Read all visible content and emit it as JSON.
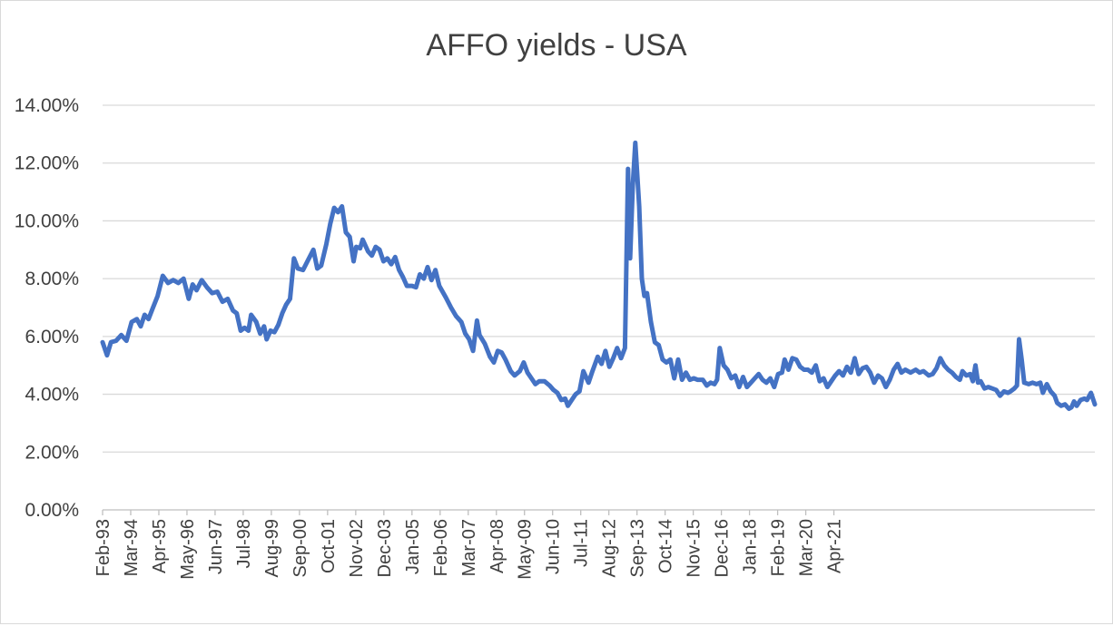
{
  "chart_data": {
    "type": "line",
    "title": "AFFO yields - USA",
    "xlabel": "",
    "ylabel": "",
    "ylim": [
      0,
      14
    ],
    "y_tick_labels": [
      "0.00%",
      "2.00%",
      "4.00%",
      "6.00%",
      "8.00%",
      "10.00%",
      "12.00%",
      "14.00%"
    ],
    "x_tick_labels": [
      "Feb-93",
      "Mar-94",
      "Apr-95",
      "May-96",
      "Jun-97",
      "Jul-98",
      "Aug-99",
      "Sep-00",
      "Oct-01",
      "Nov-02",
      "Dec-03",
      "Jan-05",
      "Feb-06",
      "Mar-07",
      "Apr-08",
      "May-09",
      "Jun-10",
      "Jul-11",
      "Aug-12",
      "Sep-13",
      "Oct-14",
      "Nov-15",
      "Dec-16",
      "Jan-18",
      "Feb-19",
      "Mar-20",
      "Apr-21"
    ],
    "grid": true,
    "legend": "none",
    "line_color": "#4472c4",
    "series": [
      {
        "values": [
          [
            1993.08,
            5.8
          ],
          [
            1993.25,
            5.35
          ],
          [
            1993.4,
            5.8
          ],
          [
            1993.6,
            5.85
          ],
          [
            1993.8,
            6.05
          ],
          [
            1994.0,
            5.85
          ],
          [
            1994.2,
            6.5
          ],
          [
            1994.4,
            6.6
          ],
          [
            1994.55,
            6.35
          ],
          [
            1994.7,
            6.75
          ],
          [
            1994.85,
            6.6
          ],
          [
            1995.0,
            6.95
          ],
          [
            1995.2,
            7.4
          ],
          [
            1995.4,
            8.1
          ],
          [
            1995.6,
            7.85
          ],
          [
            1995.8,
            7.95
          ],
          [
            1996.0,
            7.85
          ],
          [
            1996.2,
            8.0
          ],
          [
            1996.4,
            7.3
          ],
          [
            1996.55,
            7.8
          ],
          [
            1996.7,
            7.6
          ],
          [
            1996.9,
            7.95
          ],
          [
            1997.1,
            7.7
          ],
          [
            1997.3,
            7.5
          ],
          [
            1997.5,
            7.55
          ],
          [
            1997.7,
            7.2
          ],
          [
            1997.9,
            7.3
          ],
          [
            1998.1,
            6.9
          ],
          [
            1998.25,
            6.8
          ],
          [
            1998.4,
            6.2
          ],
          [
            1998.55,
            6.3
          ],
          [
            1998.7,
            6.2
          ],
          [
            1998.8,
            6.75
          ],
          [
            1999.0,
            6.5
          ],
          [
            1999.15,
            6.1
          ],
          [
            1999.3,
            6.35
          ],
          [
            1999.4,
            5.9
          ],
          [
            1999.55,
            6.2
          ],
          [
            1999.7,
            6.15
          ],
          [
            1999.85,
            6.4
          ],
          [
            2000.0,
            6.8
          ],
          [
            2000.15,
            7.1
          ],
          [
            2000.3,
            7.3
          ],
          [
            2000.45,
            8.7
          ],
          [
            2000.6,
            8.35
          ],
          [
            2000.8,
            8.3
          ],
          [
            2001.0,
            8.65
          ],
          [
            2001.2,
            9.0
          ],
          [
            2001.35,
            8.35
          ],
          [
            2001.5,
            8.45
          ],
          [
            2001.7,
            9.2
          ],
          [
            2001.85,
            9.9
          ],
          [
            2002.0,
            10.45
          ],
          [
            2002.15,
            10.3
          ],
          [
            2002.3,
            10.5
          ],
          [
            2002.45,
            9.6
          ],
          [
            2002.6,
            9.45
          ],
          [
            2002.75,
            8.6
          ],
          [
            2002.85,
            9.1
          ],
          [
            2003.0,
            9.05
          ],
          [
            2003.1,
            9.35
          ],
          [
            2003.3,
            8.95
          ],
          [
            2003.45,
            8.8
          ],
          [
            2003.6,
            9.1
          ],
          [
            2003.75,
            9.0
          ],
          [
            2003.9,
            8.6
          ],
          [
            2004.05,
            8.7
          ],
          [
            2004.2,
            8.5
          ],
          [
            2004.35,
            8.75
          ],
          [
            2004.5,
            8.3
          ],
          [
            2004.65,
            8.05
          ],
          [
            2004.8,
            7.75
          ],
          [
            2005.0,
            7.75
          ],
          [
            2005.15,
            7.7
          ],
          [
            2005.3,
            8.15
          ],
          [
            2005.45,
            8.0
          ],
          [
            2005.6,
            8.4
          ],
          [
            2005.75,
            7.95
          ],
          [
            2005.9,
            8.3
          ],
          [
            2006.05,
            7.75
          ],
          [
            2006.3,
            7.35
          ],
          [
            2006.5,
            7.0
          ],
          [
            2006.7,
            6.7
          ],
          [
            2006.9,
            6.5
          ],
          [
            2007.05,
            6.1
          ],
          [
            2007.2,
            5.9
          ],
          [
            2007.35,
            5.5
          ],
          [
            2007.5,
            6.55
          ],
          [
            2007.6,
            6.05
          ],
          [
            2007.8,
            5.75
          ],
          [
            2008.0,
            5.3
          ],
          [
            2008.15,
            5.1
          ],
          [
            2008.3,
            5.5
          ],
          [
            2008.45,
            5.45
          ],
          [
            2008.6,
            5.2
          ],
          [
            2008.8,
            4.8
          ],
          [
            2008.95,
            4.65
          ],
          [
            2009.15,
            4.8
          ],
          [
            2009.3,
            5.1
          ],
          [
            2009.45,
            4.75
          ],
          [
            2009.6,
            4.55
          ],
          [
            2009.75,
            4.35
          ],
          [
            2009.9,
            4.45
          ],
          [
            2010.1,
            4.45
          ],
          [
            2010.3,
            4.3
          ],
          [
            2010.45,
            4.15
          ],
          [
            2010.6,
            4.05
          ],
          [
            2010.75,
            3.8
          ],
          [
            2010.9,
            3.85
          ],
          [
            2011.0,
            3.6
          ],
          [
            2011.15,
            3.8
          ],
          [
            2011.3,
            4.0
          ],
          [
            2011.45,
            4.1
          ],
          [
            2011.6,
            4.8
          ],
          [
            2011.8,
            4.4
          ],
          [
            2011.95,
            4.8
          ],
          [
            2012.15,
            5.3
          ],
          [
            2012.3,
            5.05
          ],
          [
            2012.45,
            5.5
          ],
          [
            2012.6,
            4.95
          ],
          [
            2012.75,
            5.25
          ],
          [
            2012.9,
            5.6
          ],
          [
            2013.05,
            5.25
          ],
          [
            2013.2,
            5.6
          ],
          [
            2013.32,
            11.8
          ],
          [
            2013.4,
            8.7
          ],
          [
            2013.5,
            11.2
          ],
          [
            2013.6,
            12.7
          ],
          [
            2013.75,
            10.5
          ],
          [
            2013.85,
            8.0
          ],
          [
            2013.95,
            7.4
          ],
          [
            2014.05,
            7.5
          ],
          [
            2014.2,
            6.5
          ],
          [
            2014.35,
            5.8
          ],
          [
            2014.5,
            5.7
          ],
          [
            2014.65,
            5.2
          ],
          [
            2014.8,
            5.1
          ],
          [
            2014.95,
            5.2
          ],
          [
            2015.1,
            4.55
          ],
          [
            2015.25,
            5.2
          ],
          [
            2015.4,
            4.5
          ],
          [
            2015.55,
            4.75
          ],
          [
            2015.7,
            4.5
          ],
          [
            2015.85,
            4.55
          ],
          [
            2016.0,
            4.5
          ],
          [
            2016.2,
            4.5
          ],
          [
            2016.35,
            4.3
          ],
          [
            2016.5,
            4.4
          ],
          [
            2016.65,
            4.35
          ],
          [
            2016.75,
            4.5
          ],
          [
            2016.85,
            5.6
          ],
          [
            2017.0,
            5.0
          ],
          [
            2017.15,
            4.85
          ],
          [
            2017.3,
            4.55
          ],
          [
            2017.45,
            4.65
          ],
          [
            2017.6,
            4.25
          ],
          [
            2017.75,
            4.6
          ],
          [
            2017.9,
            4.25
          ],
          [
            2018.05,
            4.4
          ],
          [
            2018.2,
            4.55
          ],
          [
            2018.35,
            4.7
          ],
          [
            2018.5,
            4.5
          ],
          [
            2018.65,
            4.4
          ],
          [
            2018.8,
            4.55
          ],
          [
            2018.95,
            4.25
          ],
          [
            2019.1,
            4.7
          ],
          [
            2019.25,
            4.75
          ],
          [
            2019.35,
            5.2
          ],
          [
            2019.5,
            4.85
          ],
          [
            2019.65,
            5.25
          ],
          [
            2019.8,
            5.2
          ],
          [
            2019.95,
            4.95
          ],
          [
            2020.1,
            4.85
          ],
          [
            2020.25,
            4.85
          ],
          [
            2020.4,
            4.75
          ],
          [
            2020.55,
            5.0
          ],
          [
            2020.7,
            4.45
          ],
          [
            2020.85,
            4.55
          ],
          [
            2021.0,
            4.25
          ],
          [
            2021.15,
            4.45
          ],
          [
            2021.3,
            4.65
          ],
          [
            2021.45,
            4.8
          ],
          [
            2021.6,
            4.65
          ],
          [
            2021.75,
            4.95
          ],
          [
            2021.9,
            4.75
          ],
          [
            2022.05,
            5.25
          ],
          [
            2022.2,
            4.7
          ],
          [
            2022.35,
            4.9
          ],
          [
            2022.5,
            4.95
          ],
          [
            2022.65,
            4.75
          ],
          [
            2022.8,
            4.4
          ],
          [
            2022.95,
            4.65
          ],
          [
            2023.1,
            4.55
          ],
          [
            2023.25,
            4.25
          ],
          [
            2023.4,
            4.5
          ],
          [
            2023.55,
            4.85
          ],
          [
            2023.7,
            5.05
          ],
          [
            2023.85,
            4.75
          ],
          [
            2024.0,
            4.85
          ],
          [
            2024.2,
            4.75
          ],
          [
            2024.4,
            4.85
          ],
          [
            2024.55,
            4.75
          ],
          [
            2024.7,
            4.8
          ],
          [
            2024.9,
            4.65
          ],
          [
            2025.05,
            4.7
          ],
          [
            2025.2,
            4.9
          ],
          [
            2025.35,
            5.25
          ],
          [
            2025.5,
            5.0
          ],
          [
            2025.65,
            4.85
          ],
          [
            2025.8,
            4.75
          ],
          [
            2025.95,
            4.6
          ],
          [
            2026.1,
            4.5
          ],
          [
            2026.2,
            4.8
          ],
          [
            2026.35,
            4.65
          ],
          [
            2026.5,
            4.7
          ],
          [
            2026.6,
            4.45
          ],
          [
            2026.7,
            5.0
          ],
          [
            2026.8,
            4.4
          ],
          [
            2026.9,
            4.45
          ],
          [
            2027.05,
            4.2
          ],
          [
            2027.2,
            4.25
          ],
          [
            2027.35,
            4.2
          ],
          [
            2027.5,
            4.15
          ],
          [
            2027.65,
            3.95
          ],
          [
            2027.8,
            4.1
          ],
          [
            2027.95,
            4.05
          ],
          [
            2028.05,
            4.1
          ],
          [
            2028.2,
            4.2
          ],
          [
            2028.3,
            4.3
          ],
          [
            2028.38,
            5.9
          ],
          [
            2028.48,
            5.2
          ],
          [
            2028.58,
            4.4
          ],
          [
            2028.75,
            4.35
          ],
          [
            2028.9,
            4.4
          ],
          [
            2029.05,
            4.35
          ],
          [
            2029.2,
            4.4
          ],
          [
            2029.3,
            4.05
          ],
          [
            2029.45,
            4.35
          ],
          [
            2029.6,
            4.1
          ],
          [
            2029.75,
            3.95
          ],
          [
            2029.85,
            3.7
          ],
          [
            2030.0,
            3.6
          ],
          [
            2030.15,
            3.65
          ],
          [
            2030.3,
            3.5
          ],
          [
            2030.4,
            3.55
          ],
          [
            2030.5,
            3.75
          ],
          [
            2030.6,
            3.6
          ],
          [
            2030.75,
            3.8
          ],
          [
            2030.9,
            3.85
          ],
          [
            2031.0,
            3.8
          ],
          [
            2031.15,
            4.05
          ],
          [
            2031.3,
            3.65
          ]
        ]
      }
    ]
  }
}
